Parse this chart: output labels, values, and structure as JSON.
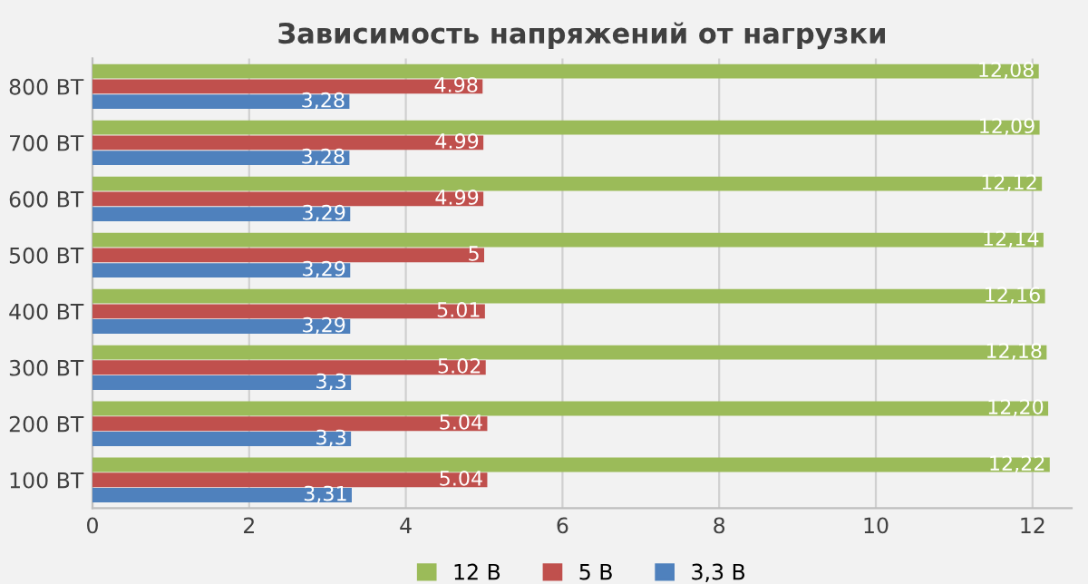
{
  "chart_data": {
    "type": "bar",
    "orientation": "horizontal",
    "title": "Зависимость напряжений от нагрузки",
    "categories": [
      "800 ВТ",
      "700 ВТ",
      "600 ВТ",
      "500 ВТ",
      "400 ВТ",
      "300 ВТ",
      "200 ВТ",
      "100 ВТ"
    ],
    "series": [
      {
        "name": "12 В",
        "color": "#9bbb59",
        "values": [
          12.08,
          12.09,
          12.12,
          12.14,
          12.16,
          12.18,
          12.2,
          12.22
        ],
        "value_labels": [
          "12,08",
          "12,09",
          "12,12",
          "12,14",
          "12,16",
          "12,18",
          "12,20",
          "12,22"
        ]
      },
      {
        "name": "5 В",
        "color": "#c0504d",
        "values": [
          4.98,
          4.99,
          4.99,
          5,
          5.01,
          5.02,
          5.04,
          5.04
        ],
        "value_labels": [
          "4.98",
          "4.99",
          "4.99",
          "5",
          "5.01",
          "5.02",
          "5.04",
          "5.04"
        ]
      },
      {
        "name": "3,3 В",
        "color": "#4f81bd",
        "values": [
          3.28,
          3.28,
          3.29,
          3.29,
          3.29,
          3.3,
          3.3,
          3.31
        ],
        "value_labels": [
          "3,28",
          "3,28",
          "3,29",
          "3,29",
          "3,29",
          "3,3",
          "3,3",
          "3,31"
        ]
      }
    ],
    "xlim": [
      0,
      12.5
    ],
    "xticks": [
      0,
      2,
      4,
      6,
      8,
      10,
      12
    ],
    "grid": "x",
    "legend": "bottom"
  }
}
